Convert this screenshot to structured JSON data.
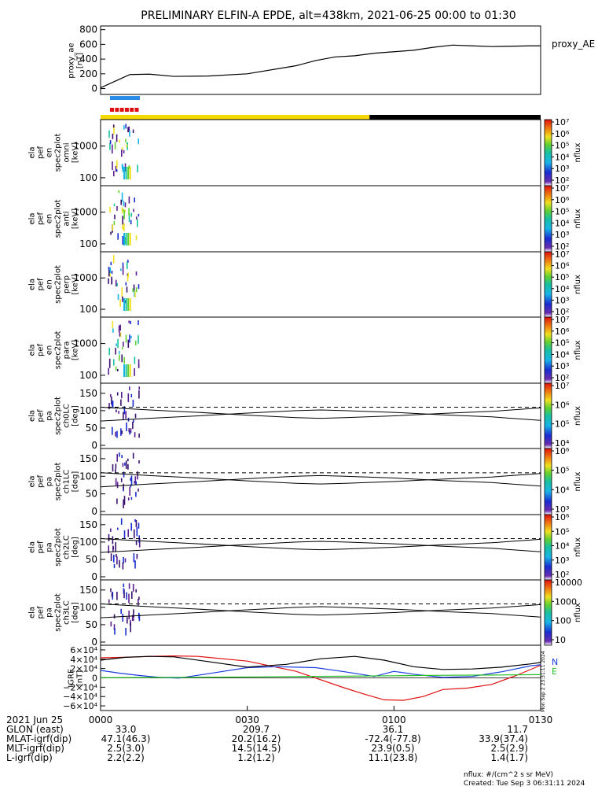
{
  "title": "PRELIMINARY ELFIN-A EPDE, alt=438km, 2021-06-25 00:00 to 01:30",
  "colors": {
    "bar_yellow": "#f5d800",
    "bar_black": "#000000",
    "blue_seg": "#2a8be6",
    "red_seg": "#e01010",
    "bx": "#e01010",
    "by": "#1a3de0",
    "bz": "#000000",
    "be": "#21c021"
  },
  "chart_data": [
    {
      "id": "proxy_ae",
      "type": "line",
      "ylabel_lines": [
        "proxy_ae",
        "[nT]"
      ],
      "legend": "proxy_AE",
      "ylim": [
        -80,
        850
      ],
      "yticks": [
        "0",
        "200",
        "400",
        "600",
        "800"
      ],
      "ytick_values": [
        0,
        200,
        400,
        600,
        800
      ],
      "x_minutes": [
        0,
        2,
        4,
        6,
        10,
        15,
        22,
        30,
        40,
        44,
        48,
        52,
        56,
        60,
        64,
        68,
        72,
        76,
        80,
        84,
        88,
        90
      ],
      "y": [
        10,
        70,
        130,
        190,
        195,
        165,
        170,
        200,
        310,
        380,
        430,
        445,
        480,
        500,
        520,
        560,
        590,
        580,
        570,
        575,
        580,
        580
      ]
    },
    {
      "id": "omni",
      "type": "heatmap",
      "ylabel_lines": [
        "ela",
        "pef",
        "en",
        "spec2plot",
        "omni",
        "[keV]"
      ],
      "yticks": [
        "1000",
        "100"
      ],
      "cbar_ticks": [
        "10⁷",
        "10⁶",
        "10⁵",
        "10⁴",
        "10³",
        "10²"
      ],
      "cbar_label": "nflux"
    },
    {
      "id": "anti",
      "type": "heatmap",
      "ylabel_lines": [
        "ela",
        "pef",
        "en",
        "spec2plot",
        "anti",
        "[keV]"
      ],
      "yticks": [
        "1000",
        "100"
      ],
      "cbar_ticks": [
        "10⁷",
        "10⁶",
        "10⁵",
        "10⁴",
        "10³",
        "10²"
      ],
      "cbar_label": "nflux"
    },
    {
      "id": "perp",
      "type": "heatmap",
      "ylabel_lines": [
        "ela",
        "pef",
        "en",
        "spec2plot",
        "perp",
        "[keV]"
      ],
      "yticks": [
        "1000",
        "100"
      ],
      "cbar_ticks": [
        "10⁷",
        "10⁶",
        "10⁵",
        "10⁴",
        "10³",
        "10²"
      ],
      "cbar_label": "nflux"
    },
    {
      "id": "para",
      "type": "heatmap",
      "ylabel_lines": [
        "ela",
        "pef",
        "en",
        "spec2plot",
        "para",
        "[keV]"
      ],
      "yticks": [
        "1000",
        "100"
      ],
      "cbar_ticks": [
        "10⁷",
        "10⁶",
        "10⁵",
        "10⁴",
        "10³",
        "10²"
      ],
      "cbar_label": "nflux"
    },
    {
      "id": "ch0LC",
      "type": "heatmap",
      "ylabel_lines": [
        "ela",
        "pef",
        "pa",
        "spec2plot",
        "ch0LC",
        "[deg]"
      ],
      "yticks": [
        "150",
        "100",
        "50",
        "0"
      ],
      "cbar_ticks": [
        "10⁷",
        "10⁶",
        "10⁵",
        "10⁴"
      ],
      "cbar_label": "nflux"
    },
    {
      "id": "ch1LC",
      "type": "heatmap",
      "ylabel_lines": [
        "ela",
        "pef",
        "pa",
        "spec2plot",
        "ch1LC",
        "[deg]"
      ],
      "yticks": [
        "150",
        "100",
        "50",
        "0"
      ],
      "cbar_ticks": [
        "10⁶",
        "10⁵",
        "10⁴",
        "10³"
      ],
      "cbar_label": "nflux"
    },
    {
      "id": "ch2LC",
      "type": "heatmap",
      "ylabel_lines": [
        "ela",
        "pef",
        "pa",
        "spec2plot",
        "ch2LC",
        "[deg]"
      ],
      "yticks": [
        "150",
        "100",
        "50",
        "0"
      ],
      "cbar_ticks": [
        "10⁶",
        "10⁵",
        "10⁴",
        "10³",
        "10²"
      ],
      "cbar_label": "nflux"
    },
    {
      "id": "ch3LC",
      "type": "heatmap",
      "ylabel_lines": [
        "ela",
        "pef",
        "pa",
        "spec2plot",
        "ch3LC",
        "[deg]"
      ],
      "yticks": [
        "150",
        "100",
        "50",
        "0"
      ],
      "cbar_ticks": [
        "10000",
        "1000",
        "100",
        "10"
      ],
      "cbar_label": "nflux"
    },
    {
      "id": "igrf",
      "type": "line",
      "ylabel_lines": [
        "IGRF",
        "[nT]"
      ],
      "ylim": [
        -70000,
        70000
      ],
      "yticks": [
        "6×10⁴",
        "4×10⁴",
        "2×10⁴",
        "0",
        "−2×10⁴",
        "−4×10⁴",
        "−6×10⁴"
      ],
      "ytick_values": [
        60000,
        40000,
        20000,
        0,
        -20000,
        -40000,
        -60000
      ],
      "legend": [
        "N",
        "E"
      ],
      "series": [
        {
          "name": "",
          "x_minutes": [
            0,
            5,
            10,
            15,
            20,
            30,
            40,
            50,
            54,
            58,
            62,
            66,
            70,
            75,
            80,
            85,
            90
          ],
          "y": [
            43000,
            44000,
            46000,
            47000,
            46000,
            36000,
            14000,
            -22000,
            -35000,
            -47000,
            -48000,
            -40000,
            -25000,
            -22000,
            -14000,
            5000,
            27000
          ]
        },
        {
          "name": "",
          "x_minutes": [
            0,
            4,
            8,
            12,
            16,
            22,
            30,
            36,
            44,
            50,
            56,
            60,
            64,
            70,
            76,
            82,
            88,
            90
          ],
          "y": [
            16000,
            10000,
            5000,
            1000,
            -500,
            9000,
            22000,
            24000,
            22000,
            13000,
            3000,
            14000,
            8000,
            1000,
            3000,
            13000,
            26000,
            28000
          ]
        },
        {
          "name": "",
          "x_minutes": [
            0,
            5,
            10,
            15,
            22,
            30,
            38,
            45,
            52,
            58,
            64,
            70,
            76,
            82,
            88,
            90
          ],
          "y": [
            38000,
            44000,
            46000,
            45000,
            35000,
            23000,
            29000,
            41000,
            46000,
            38000,
            24000,
            18000,
            19000,
            23000,
            30000,
            33000
          ]
        },
        {
          "name": "",
          "x_minutes": [
            0,
            10,
            20,
            30,
            40,
            50,
            60,
            70,
            80,
            90
          ],
          "y": [
            500,
            900,
            1400,
            2000,
            2800,
            3500,
            4500,
            5500,
            6000,
            7000
          ]
        }
      ]
    }
  ],
  "pa_lines": {
    "x_minutes": [
      0,
      10,
      20,
      30,
      40,
      45,
      50,
      60,
      70,
      80,
      90
    ],
    "solid": [
      70,
      78,
      85,
      93,
      100,
      102,
      100,
      95,
      88,
      82,
      72
    ],
    "dashed": 110
  },
  "time_axis": {
    "xlim_minutes": [
      0,
      90
    ],
    "ticks": [
      {
        "m": 0,
        "label": "0000"
      },
      {
        "m": 30,
        "label": "0030"
      },
      {
        "m": 60,
        "label": "0100"
      },
      {
        "m": 90,
        "label": "0130"
      }
    ],
    "date_label": "2021 Jun 25"
  },
  "ephem": {
    "rows": [
      {
        "label": "GLON (east)",
        "values": [
          "33.0",
          "209.7",
          "36.1",
          "11.7"
        ]
      },
      {
        "label": "MLAT-igrf(dip)",
        "values": [
          "47.1(46.3)",
          "20.2(16.2)",
          "-72.4(-77.8)",
          "33.9(37.4)"
        ]
      },
      {
        "label": "MLT-igrf(dip)",
        "values": [
          "2.5(3.0)",
          "14.5(14.5)",
          "23.9(0.5)",
          "2.5(2.9)"
        ]
      },
      {
        "label": "L-igrf(dip)",
        "values": [
          "2.2(2.2)",
          "1.2(1.2)",
          "11.1(23.8)",
          "1.4(1.7)"
        ]
      }
    ]
  },
  "footer": {
    "units": "nflux: #/(cm^2 s sr MeV)",
    "created": "Created: Tue Sep  3 06:31:11 2024",
    "vertical_stamp": "Mon Sep  2 23:31:11 2024"
  }
}
